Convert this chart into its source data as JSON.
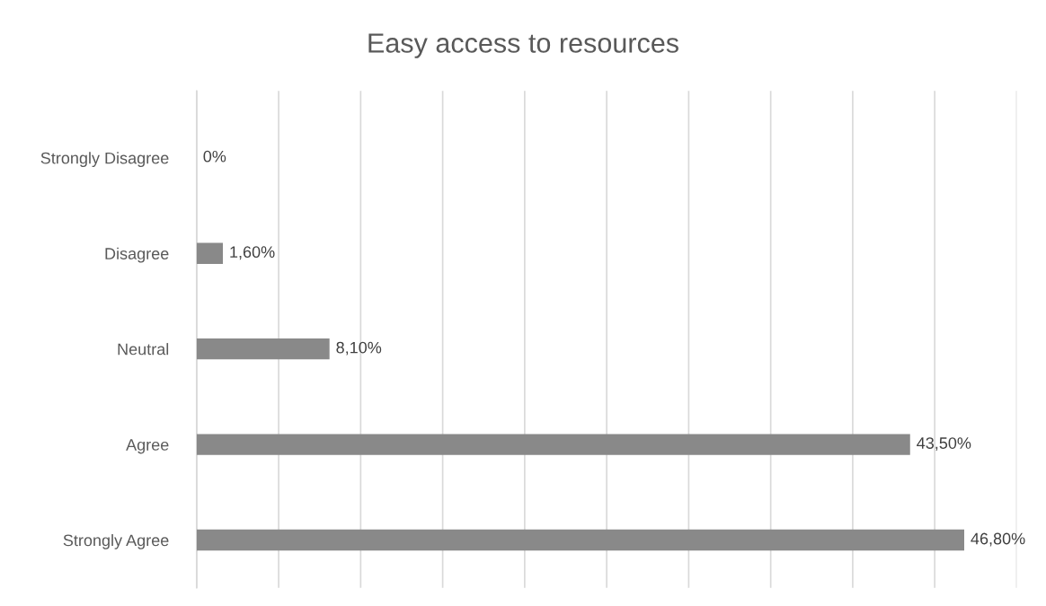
{
  "chart_data": {
    "type": "bar",
    "orientation": "horizontal",
    "title": "Easy access to resources",
    "categories": [
      "Strongly Disagree",
      "Disagree",
      "Neutral",
      "Agree",
      "Strongly Agree"
    ],
    "values": [
      0,
      1.6,
      8.1,
      43.5,
      46.8
    ],
    "value_labels": [
      "0%",
      "1,60%",
      "8,10%",
      "43,50%",
      "46,80%"
    ],
    "color": "#898989",
    "xlim": [
      0,
      50
    ],
    "xticks": [
      {
        "value": 0,
        "label": null
      },
      {
        "value": 5,
        "label": null
      },
      {
        "value": 10,
        "label": null
      },
      {
        "value": 15,
        "label": null
      },
      {
        "value": 20,
        "label": null
      },
      {
        "value": 25,
        "label": null
      },
      {
        "value": 30,
        "label": null
      },
      {
        "value": 35,
        "label": null
      },
      {
        "value": 40,
        "label": null
      },
      {
        "value": 45,
        "label": null
      },
      {
        "value": 50,
        "label": null
      }
    ],
    "grid": "x",
    "tick_labels": "y"
  }
}
